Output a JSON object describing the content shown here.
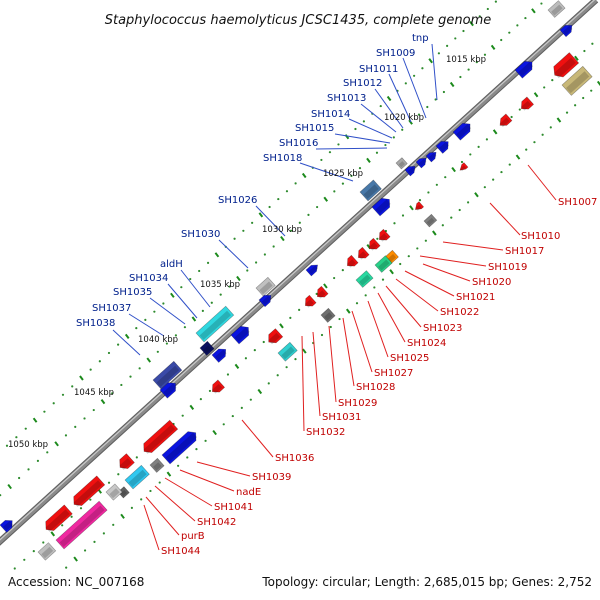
{
  "title": "Staphylococcus haemolyticus JCSC1435, complete genome",
  "footer": {
    "accession": "Accession: NC_007168",
    "summary": "Topology: circular; Length: 2,685,015 bp; Genes: 2,752"
  },
  "kbp_marks": [
    "1015 kbp",
    "1020 kbp",
    "1025 kbp",
    "1030 kbp",
    "1035 kbp",
    "1040 kbp",
    "1045 kbp",
    "1050 kbp"
  ],
  "outer_labels": [
    "tnp",
    "SH1009",
    "SH1011",
    "SH1012",
    "SH1013",
    "SH1014",
    "SH1015",
    "SH1016",
    "SH1018",
    "SH1026",
    "SH1030",
    "aldH",
    "SH1034",
    "SH1035",
    "SH1037",
    "SH1038"
  ],
  "inner_labels": [
    "SH1007",
    "SH1010",
    "SH1017",
    "SH1019",
    "SH1020",
    "SH1021",
    "SH1022",
    "SH1023",
    "SH1024",
    "SH1025",
    "SH1027",
    "SH1028",
    "SH1029",
    "SH1031",
    "SH1032",
    "SH1036",
    "SH1039",
    "nadE",
    "SH1041",
    "SH1042",
    "purB",
    "SH1044"
  ],
  "colors": {
    "backbone": "#8a8a8a",
    "forward_cds": "#0a14e0",
    "reverse_cds": "#f01010",
    "outer_label": "#00208c",
    "inner_label": "#c00000"
  }
}
